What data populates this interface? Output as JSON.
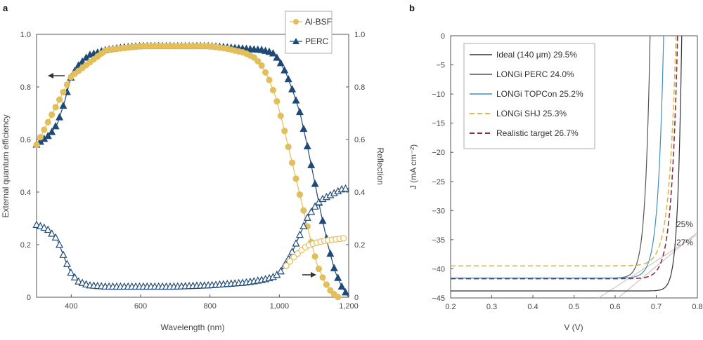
{
  "chart_data": [
    {
      "panel_label": "a",
      "type": "scatter",
      "xlabel": "Wavelength (nm)",
      "ylabel": "External quantum efficiency",
      "y2label": "Reflection",
      "xlim": [
        300,
        1200
      ],
      "ylim": [
        0,
        1.0
      ],
      "y2lim": [
        0,
        1.0
      ],
      "xticks": [
        400,
        600,
        800,
        1000,
        1200
      ],
      "xtick_labels": [
        "400",
        "600",
        "800",
        "1,000",
        "1,200"
      ],
      "yticks": [
        0,
        0.2,
        0.4,
        0.6,
        0.8,
        1.0
      ],
      "ytick_labels": [
        "0",
        "0.2",
        "0.4",
        "0.6",
        "0.8",
        "1.0"
      ],
      "legend_position": "top-right",
      "colors": {
        "albsf": "#e2bf5a",
        "perc": "#1f4a78"
      },
      "legend": [
        {
          "name": "Al-BSF",
          "marker": "circle",
          "color": "#e2bf5a"
        },
        {
          "name": "PERC",
          "marker": "triangle",
          "color": "#1f4a78"
        }
      ],
      "series": [
        {
          "name": "PERC",
          "quantity": "EQE",
          "marker": "triangle-filled",
          "color": "#1f4a78",
          "points": [
            [
              300,
              0.58
            ],
            [
              340,
              0.62
            ],
            [
              360,
              0.66
            ],
            [
              380,
              0.74
            ],
            [
              400,
              0.84
            ],
            [
              420,
              0.88
            ],
            [
              450,
              0.92
            ],
            [
              500,
              0.94
            ],
            [
              550,
              0.95
            ],
            [
              600,
              0.955
            ],
            [
              650,
              0.955
            ],
            [
              700,
              0.955
            ],
            [
              750,
              0.955
            ],
            [
              800,
              0.955
            ],
            [
              850,
              0.95
            ],
            [
              900,
              0.945
            ],
            [
              950,
              0.94
            ],
            [
              980,
              0.93
            ],
            [
              1000,
              0.9
            ],
            [
              1020,
              0.85
            ],
            [
              1040,
              0.78
            ],
            [
              1060,
              0.7
            ],
            [
              1080,
              0.58
            ],
            [
              1100,
              0.45
            ],
            [
              1120,
              0.32
            ],
            [
              1140,
              0.2
            ],
            [
              1160,
              0.1
            ],
            [
              1180,
              0.04
            ],
            [
              1200,
              0.0
            ]
          ]
        },
        {
          "name": "Al-BSF",
          "quantity": "EQE",
          "marker": "circle-filled",
          "color": "#e2bf5a",
          "points": [
            [
              300,
              0.58
            ],
            [
              400,
              0.84
            ],
            [
              500,
              0.94
            ],
            [
              600,
              0.955
            ],
            [
              700,
              0.955
            ],
            [
              800,
              0.955
            ],
            [
              850,
              0.945
            ],
            [
              900,
              0.93
            ],
            [
              930,
              0.91
            ],
            [
              950,
              0.88
            ],
            [
              970,
              0.83
            ],
            [
              990,
              0.76
            ],
            [
              1010,
              0.66
            ],
            [
              1030,
              0.55
            ],
            [
              1050,
              0.44
            ],
            [
              1070,
              0.33
            ],
            [
              1090,
              0.22
            ],
            [
              1110,
              0.12
            ],
            [
              1130,
              0.06
            ],
            [
              1150,
              0.02
            ],
            [
              1170,
              0.0
            ]
          ]
        },
        {
          "name": "PERC",
          "quantity": "Reflection",
          "marker": "triangle-open",
          "color": "#1f4a78",
          "points": [
            [
              300,
              0.275
            ],
            [
              330,
              0.26
            ],
            [
              360,
              0.22
            ],
            [
              380,
              0.15
            ],
            [
              400,
              0.09
            ],
            [
              420,
              0.06
            ],
            [
              450,
              0.045
            ],
            [
              500,
              0.04
            ],
            [
              600,
              0.04
            ],
            [
              700,
              0.04
            ],
            [
              800,
              0.045
            ],
            [
              900,
              0.055
            ],
            [
              950,
              0.065
            ],
            [
              980,
              0.075
            ],
            [
              1000,
              0.09
            ],
            [
              1020,
              0.13
            ],
            [
              1040,
              0.18
            ],
            [
              1060,
              0.24
            ],
            [
              1080,
              0.3
            ],
            [
              1100,
              0.34
            ],
            [
              1120,
              0.37
            ],
            [
              1150,
              0.39
            ],
            [
              1180,
              0.41
            ],
            [
              1200,
              0.415
            ]
          ]
        },
        {
          "name": "Al-BSF",
          "quantity": "Reflection",
          "marker": "circle-open",
          "color": "#e2bf5a",
          "points": [
            [
              1020,
              0.12
            ],
            [
              1040,
              0.15
            ],
            [
              1060,
              0.175
            ],
            [
              1080,
              0.195
            ],
            [
              1100,
              0.205
            ],
            [
              1130,
              0.215
            ],
            [
              1160,
              0.22
            ],
            [
              1190,
              0.225
            ]
          ]
        }
      ]
    },
    {
      "panel_label": "b",
      "type": "line",
      "xlabel": "V (V)",
      "ylabel": "J (mA cm⁻²)",
      "xlim": [
        0.2,
        0.8
      ],
      "ylim": [
        -45,
        0
      ],
      "xticks": [
        0.2,
        0.3,
        0.4,
        0.5,
        0.6,
        0.7,
        0.8
      ],
      "xtick_labels": [
        "0.2",
        "0.3",
        "0.4",
        "0.5",
        "0.6",
        "0.7",
        "0.8"
      ],
      "yticks": [
        0,
        -5,
        -10,
        -15,
        -20,
        -25,
        -30,
        -35,
        -40,
        -45
      ],
      "ytick_labels": [
        "0",
        "−5",
        "−10",
        "−15",
        "−20",
        "−25",
        "−30",
        "−35",
        "−40",
        "−45"
      ],
      "legend_position": "top-left",
      "annotations": [
        "25%",
        "27%"
      ],
      "series": [
        {
          "name": "Ideal (140 µm) 29.5%",
          "color": "#333333",
          "dash": "solid",
          "width": 1.2,
          "jsc": -43.8,
          "voc": 0.762,
          "nvt": 0.0095
        },
        {
          "name": "LONGi PERC 24.0%",
          "color": "#555555",
          "dash": "solid",
          "width": 1.2,
          "jsc": -41.6,
          "voc": 0.685,
          "nvt": 0.0115
        },
        {
          "name": "LONGi TOPCon 25.2%",
          "color": "#3f8fc2",
          "dash": "solid",
          "width": 1.2,
          "jsc": -41.6,
          "voc": 0.718,
          "nvt": 0.0135
        },
        {
          "name": "LONGi SHJ 25.3%",
          "color": "#d9b84c",
          "dash": "dashed",
          "width": 1.6,
          "jsc": -39.5,
          "voc": 0.748,
          "nvt": 0.0165
        },
        {
          "name": "Realistic target 26.7%",
          "color": "#8a2f3d",
          "dash": "dashed",
          "width": 1.6,
          "jsc": -41.7,
          "voc": 0.752,
          "nvt": 0.015
        }
      ],
      "reference_lines": [
        {
          "label": "25%",
          "points": [
            [
              0.55,
              -45.45
            ],
            [
              0.8,
              -34.1
            ]
          ]
        },
        {
          "label": "27%",
          "points": [
            [
              0.58,
              -46.6
            ],
            [
              0.8,
              -33.75
            ]
          ]
        }
      ]
    }
  ]
}
